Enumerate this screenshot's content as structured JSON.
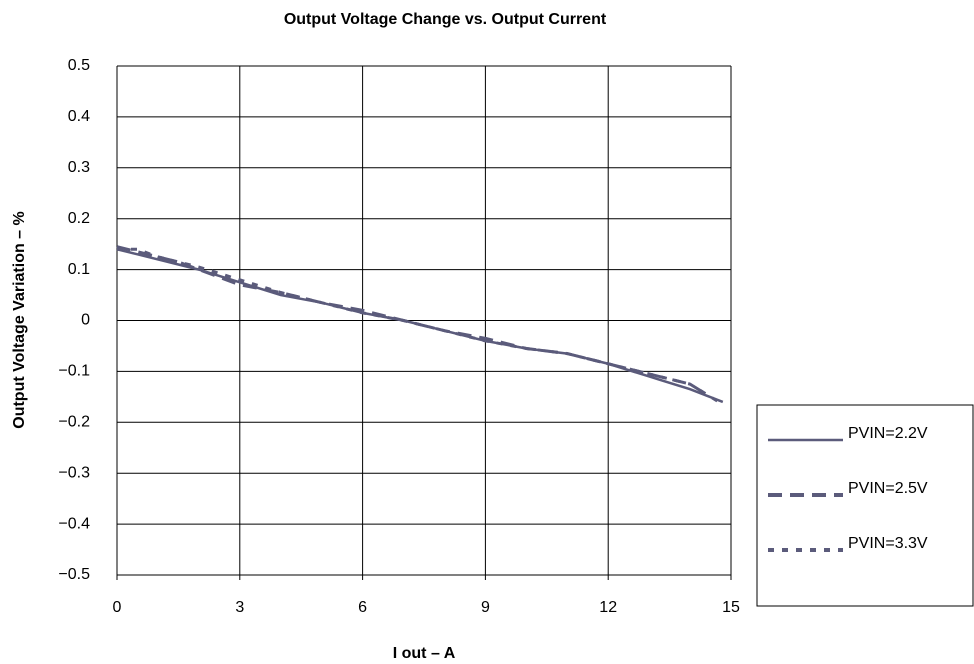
{
  "chart_data": {
    "type": "line",
    "title": "Output Voltage Change vs. Output Current",
    "xlabel": "I out – A",
    "ylabel": "Output Voltage Variation – %",
    "xlim": [
      0,
      15
    ],
    "xticks": [
      0,
      3,
      6,
      9,
      12,
      15
    ],
    "ylim": [
      -0.5,
      0.5
    ],
    "yticks": [
      {
        "value": -0.5,
        "label": "−0.5"
      },
      {
        "value": -0.4,
        "label": "−0.4"
      },
      {
        "value": -0.3,
        "label": "−0.3"
      },
      {
        "value": -0.2,
        "label": "−0.2"
      },
      {
        "value": -0.1,
        "label": "−0.1"
      },
      0,
      0.1,
      0.2,
      0.3,
      0.4,
      0.5
    ],
    "grid": true,
    "legend": "right",
    "series": [
      {
        "name": "PVIN=2.2V",
        "color": "#5b5b7b",
        "dash": "solid",
        "x": [
          0,
          0.5,
          1,
          1.5,
          2,
          3,
          4,
          5,
          6,
          7,
          8,
          9,
          10,
          11,
          12,
          13,
          14,
          14.8
        ],
        "values": [
          0.14,
          0.13,
          0.12,
          0.11,
          0.1,
          0.075,
          0.05,
          0.035,
          0.015,
          0,
          -0.02,
          -0.04,
          -0.055,
          -0.065,
          -0.085,
          -0.11,
          -0.135,
          -0.16
        ]
      },
      {
        "name": "PVIN=2.5V",
        "color": "#5b5b7b",
        "dash": "dashed",
        "x": [
          0,
          0.5,
          1,
          1.5,
          2,
          3,
          4,
          5,
          6,
          7,
          8,
          9,
          10,
          11,
          12,
          13,
          14,
          14.5
        ],
        "values": [
          0.145,
          0.135,
          0.125,
          0.115,
          0.1,
          0.07,
          0.055,
          0.035,
          0.02,
          0,
          -0.02,
          -0.035,
          -0.055,
          -0.065,
          -0.085,
          -0.105,
          -0.125,
          -0.15
        ]
      },
      {
        "name": "PVIN=3.3V",
        "color": "#5b5b7b",
        "dash": "dotted",
        "x": [
          0,
          0.5,
          1,
          1.5,
          2,
          3,
          4,
          5,
          6,
          7,
          8,
          9,
          10,
          11,
          12,
          13,
          14,
          14.8
        ],
        "values": [
          0.14,
          0.14,
          0.125,
          0.115,
          0.105,
          0.08,
          0.055,
          0.035,
          0.015,
          0,
          -0.02,
          -0.04,
          -0.055,
          -0.065,
          -0.085,
          -0.105,
          -0.125,
          -0.165
        ]
      }
    ]
  }
}
